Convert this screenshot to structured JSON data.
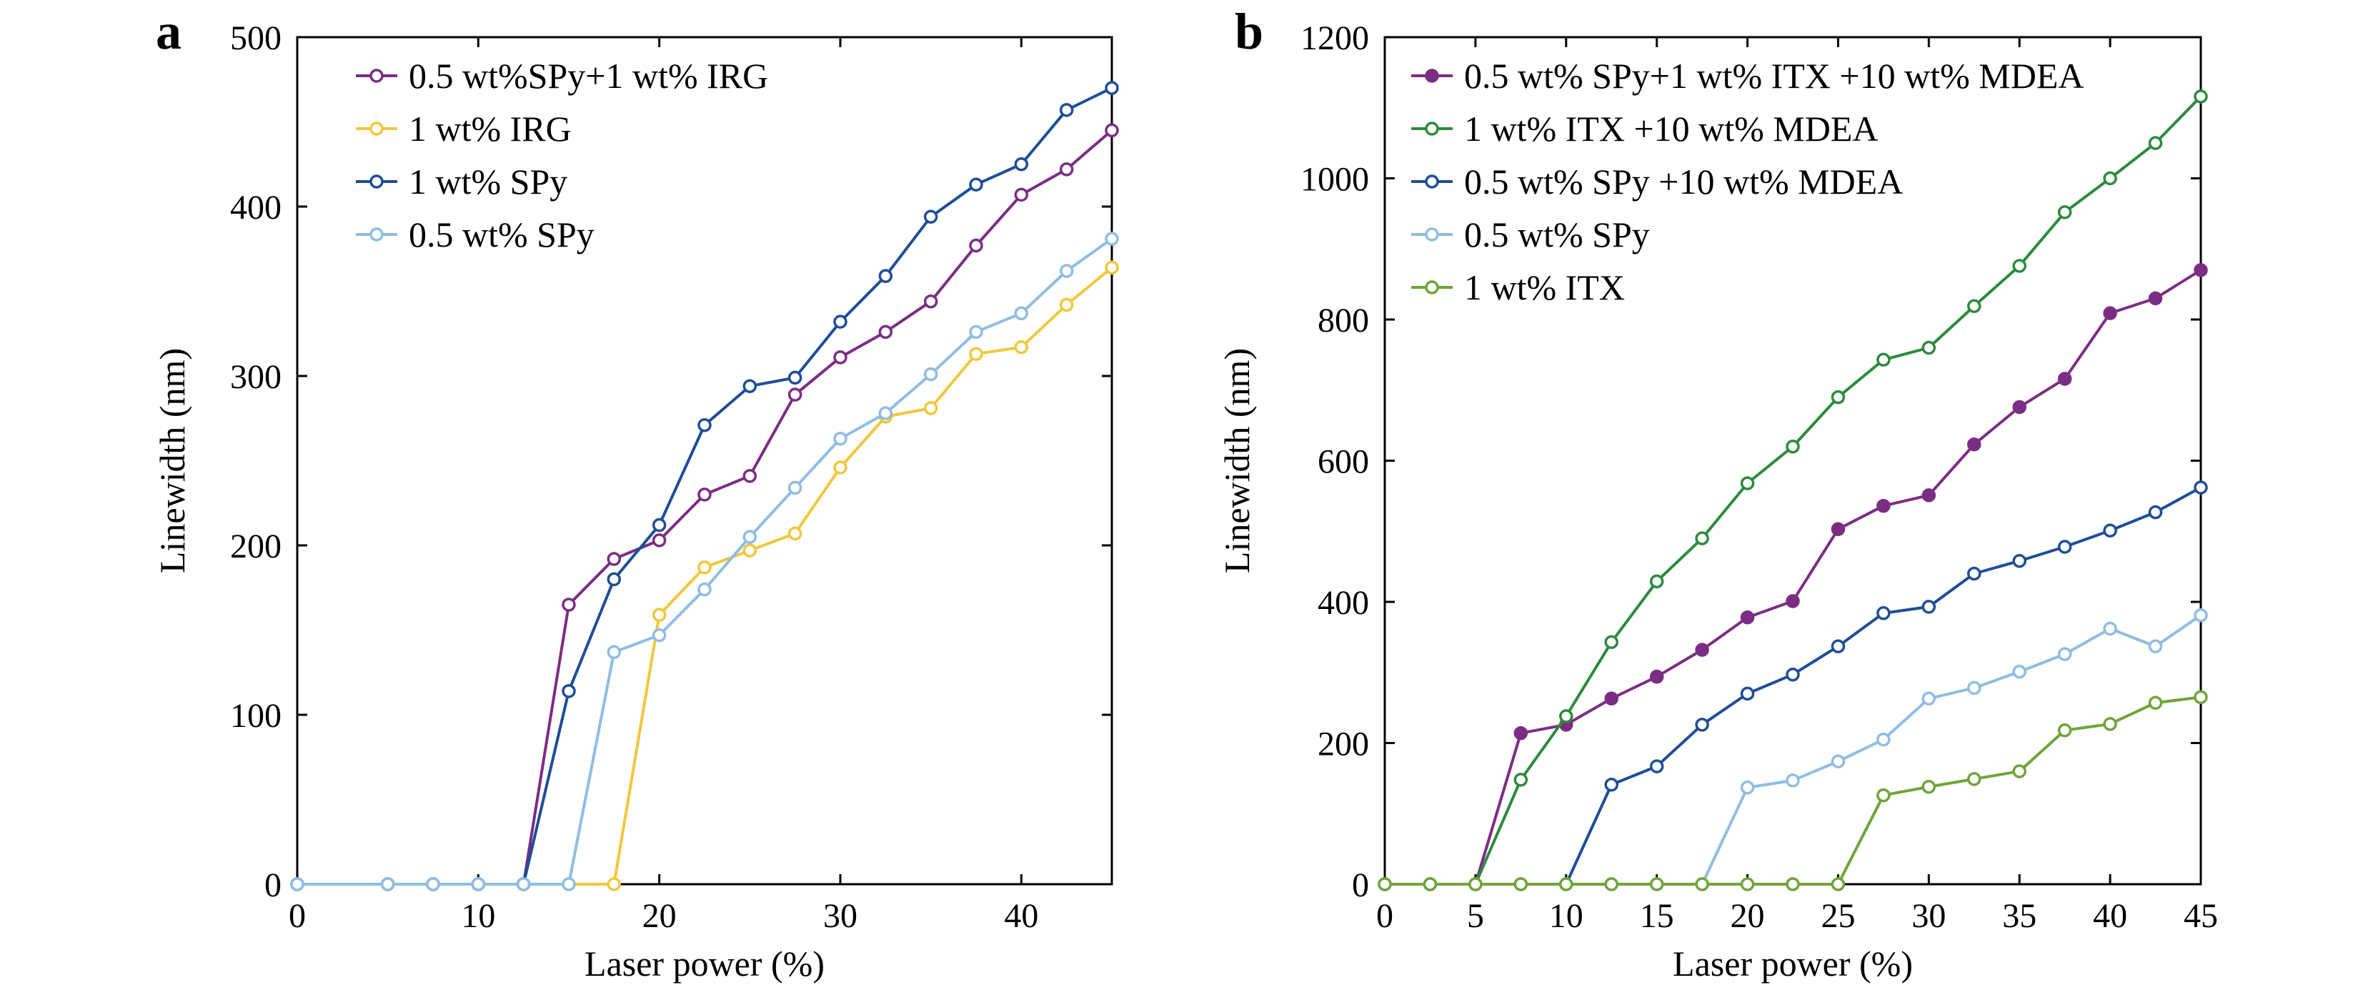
{
  "chart_data": [
    {
      "type": "line",
      "panel": "a",
      "xlabel": "Laser power (%)",
      "ylabel": "Linewidth (nm)",
      "xlim": [
        0,
        45
      ],
      "ylim": [
        0,
        500
      ],
      "xticks": [
        0,
        10,
        20,
        30,
        40
      ],
      "yticks": [
        0,
        100,
        200,
        300,
        400,
        500
      ],
      "grid": false,
      "legend_position": "top-left",
      "series": [
        {
          "name": "0.5 wt%SPy+1 wt% IRG",
          "color": "#7b2d84",
          "filled": false,
          "points": [
            [
              0,
              0
            ],
            [
              5,
              0
            ],
            [
              7.5,
              0
            ],
            [
              10,
              0
            ],
            [
              12.5,
              0
            ],
            [
              15,
              165
            ],
            [
              17.5,
              192
            ],
            [
              20,
              203
            ],
            [
              22.5,
              230
            ],
            [
              25,
              241
            ],
            [
              27.5,
              289
            ],
            [
              30,
              311
            ],
            [
              32.5,
              326
            ],
            [
              35,
              344
            ],
            [
              37.5,
              377
            ],
            [
              40,
              407
            ],
            [
              42.5,
              422
            ],
            [
              45,
              445
            ]
          ]
        },
        {
          "name": "1 wt% IRG",
          "color": "#f2c73a",
          "filled": false,
          "points": [
            [
              0,
              0
            ],
            [
              5,
              0
            ],
            [
              7.5,
              0
            ],
            [
              10,
              0
            ],
            [
              12.5,
              0
            ],
            [
              15,
              0
            ],
            [
              17.5,
              0
            ],
            [
              20,
              159
            ],
            [
              22.5,
              187
            ],
            [
              25,
              197
            ],
            [
              27.5,
              207
            ],
            [
              30,
              246
            ],
            [
              32.5,
              276
            ],
            [
              35,
              281
            ],
            [
              37.5,
              313
            ],
            [
              40,
              317
            ],
            [
              42.5,
              342
            ],
            [
              45,
              364
            ]
          ]
        },
        {
          "name": "1 wt% SPy",
          "color": "#1f4e96",
          "filled": false,
          "points": [
            [
              0,
              0
            ],
            [
              5,
              0
            ],
            [
              7.5,
              0
            ],
            [
              10,
              0
            ],
            [
              12.5,
              0
            ],
            [
              15,
              114
            ],
            [
              17.5,
              180
            ],
            [
              20,
              212
            ],
            [
              22.5,
              271
            ],
            [
              25,
              294
            ],
            [
              27.5,
              299
            ],
            [
              30,
              332
            ],
            [
              32.5,
              359
            ],
            [
              35,
              394
            ],
            [
              37.5,
              413
            ],
            [
              40,
              425
            ],
            [
              42.5,
              457
            ],
            [
              45,
              470
            ]
          ]
        },
        {
          "name": "0.5 wt% SPy",
          "color": "#8fbde3",
          "filled": false,
          "points": [
            [
              0,
              0
            ],
            [
              5,
              0
            ],
            [
              7.5,
              0
            ],
            [
              10,
              0
            ],
            [
              12.5,
              0
            ],
            [
              15,
              0
            ],
            [
              17.5,
              137
            ],
            [
              20,
              147
            ],
            [
              22.5,
              174
            ],
            [
              25,
              205
            ],
            [
              27.5,
              234
            ],
            [
              30,
              263
            ],
            [
              32.5,
              278
            ],
            [
              35,
              301
            ],
            [
              37.5,
              326
            ],
            [
              40,
              337
            ],
            [
              42.5,
              362
            ],
            [
              45,
              381
            ]
          ]
        }
      ]
    },
    {
      "type": "line",
      "panel": "b",
      "xlabel": "Laser power (%)",
      "ylabel": "Linewidth (nm)",
      "xlim": [
        0,
        45
      ],
      "ylim": [
        0,
        1200
      ],
      "xticks": [
        0,
        5,
        10,
        15,
        20,
        25,
        30,
        35,
        40,
        45
      ],
      "yticks": [
        0,
        200,
        400,
        600,
        800,
        1000,
        1200
      ],
      "grid": false,
      "legend_position": "top-left",
      "series": [
        {
          "name": "0.5 wt% SPy+1 wt% ITX +10 wt% MDEA",
          "color": "#7b2d84",
          "filled": true,
          "points": [
            [
              0,
              0
            ],
            [
              2.5,
              0
            ],
            [
              5,
              0
            ],
            [
              7.5,
              214
            ],
            [
              10,
              226
            ],
            [
              12.5,
              263
            ],
            [
              15,
              294
            ],
            [
              17.5,
              332
            ],
            [
              20,
              378
            ],
            [
              22.5,
              401
            ],
            [
              25,
              503
            ],
            [
              27.5,
              536
            ],
            [
              30,
              551
            ],
            [
              32.5,
              623
            ],
            [
              35,
              676
            ],
            [
              37.5,
              716
            ],
            [
              40,
              809
            ],
            [
              42.5,
              830
            ],
            [
              45,
              870
            ]
          ]
        },
        {
          "name": "1 wt% ITX +10 wt% MDEA",
          "color": "#2d8a3e",
          "filled": false,
          "points": [
            [
              0,
              0
            ],
            [
              2.5,
              0
            ],
            [
              5,
              0
            ],
            [
              7.5,
              148
            ],
            [
              10,
              238
            ],
            [
              12.5,
              343
            ],
            [
              15,
              429
            ],
            [
              17.5,
              490
            ],
            [
              20,
              568
            ],
            [
              22.5,
              620
            ],
            [
              25,
              690
            ],
            [
              27.5,
              743
            ],
            [
              30,
              760
            ],
            [
              32.5,
              819
            ],
            [
              35,
              876
            ],
            [
              37.5,
              952
            ],
            [
              40,
              1000
            ],
            [
              42.5,
              1050
            ],
            [
              45,
              1116
            ]
          ]
        },
        {
          "name": "0.5 wt% SPy +10 wt% MDEA",
          "color": "#1f4e96",
          "filled": false,
          "points": [
            [
              0,
              0
            ],
            [
              2.5,
              0
            ],
            [
              5,
              0
            ],
            [
              7.5,
              0
            ],
            [
              10,
              0
            ],
            [
              12.5,
              141
            ],
            [
              15,
              167
            ],
            [
              17.5,
              226
            ],
            [
              20,
              270
            ],
            [
              22.5,
              297
            ],
            [
              25,
              337
            ],
            [
              27.5,
              384
            ],
            [
              30,
              393
            ],
            [
              32.5,
              440
            ],
            [
              35,
              458
            ],
            [
              37.5,
              478
            ],
            [
              40,
              501
            ],
            [
              42.5,
              527
            ],
            [
              45,
              562
            ]
          ]
        },
        {
          "name": "0.5 wt% SPy",
          "color": "#8fbde3",
          "filled": false,
          "points": [
            [
              0,
              0
            ],
            [
              2.5,
              0
            ],
            [
              5,
              0
            ],
            [
              7.5,
              0
            ],
            [
              10,
              0
            ],
            [
              12.5,
              0
            ],
            [
              15,
              0
            ],
            [
              17.5,
              0
            ],
            [
              20,
              137
            ],
            [
              22.5,
              147
            ],
            [
              25,
              174
            ],
            [
              27.5,
              205
            ],
            [
              30,
              263
            ],
            [
              32.5,
              278
            ],
            [
              35,
              301
            ],
            [
              37.5,
              326
            ],
            [
              40,
              362
            ],
            [
              42.5,
              337
            ],
            [
              45,
              381
            ]
          ]
        },
        {
          "name": "1 wt% ITX",
          "color": "#6fa43a",
          "filled": false,
          "points": [
            [
              0,
              0
            ],
            [
              2.5,
              0
            ],
            [
              5,
              0
            ],
            [
              7.5,
              0
            ],
            [
              10,
              0
            ],
            [
              12.5,
              0
            ],
            [
              15,
              0
            ],
            [
              17.5,
              0
            ],
            [
              20,
              0
            ],
            [
              22.5,
              0
            ],
            [
              25,
              0
            ],
            [
              27.5,
              126
            ],
            [
              30,
              138
            ],
            [
              32.5,
              149
            ],
            [
              35,
              160
            ],
            [
              37.5,
              218
            ],
            [
              40,
              227
            ],
            [
              42.5,
              257
            ],
            [
              45,
              265
            ]
          ]
        }
      ]
    }
  ]
}
